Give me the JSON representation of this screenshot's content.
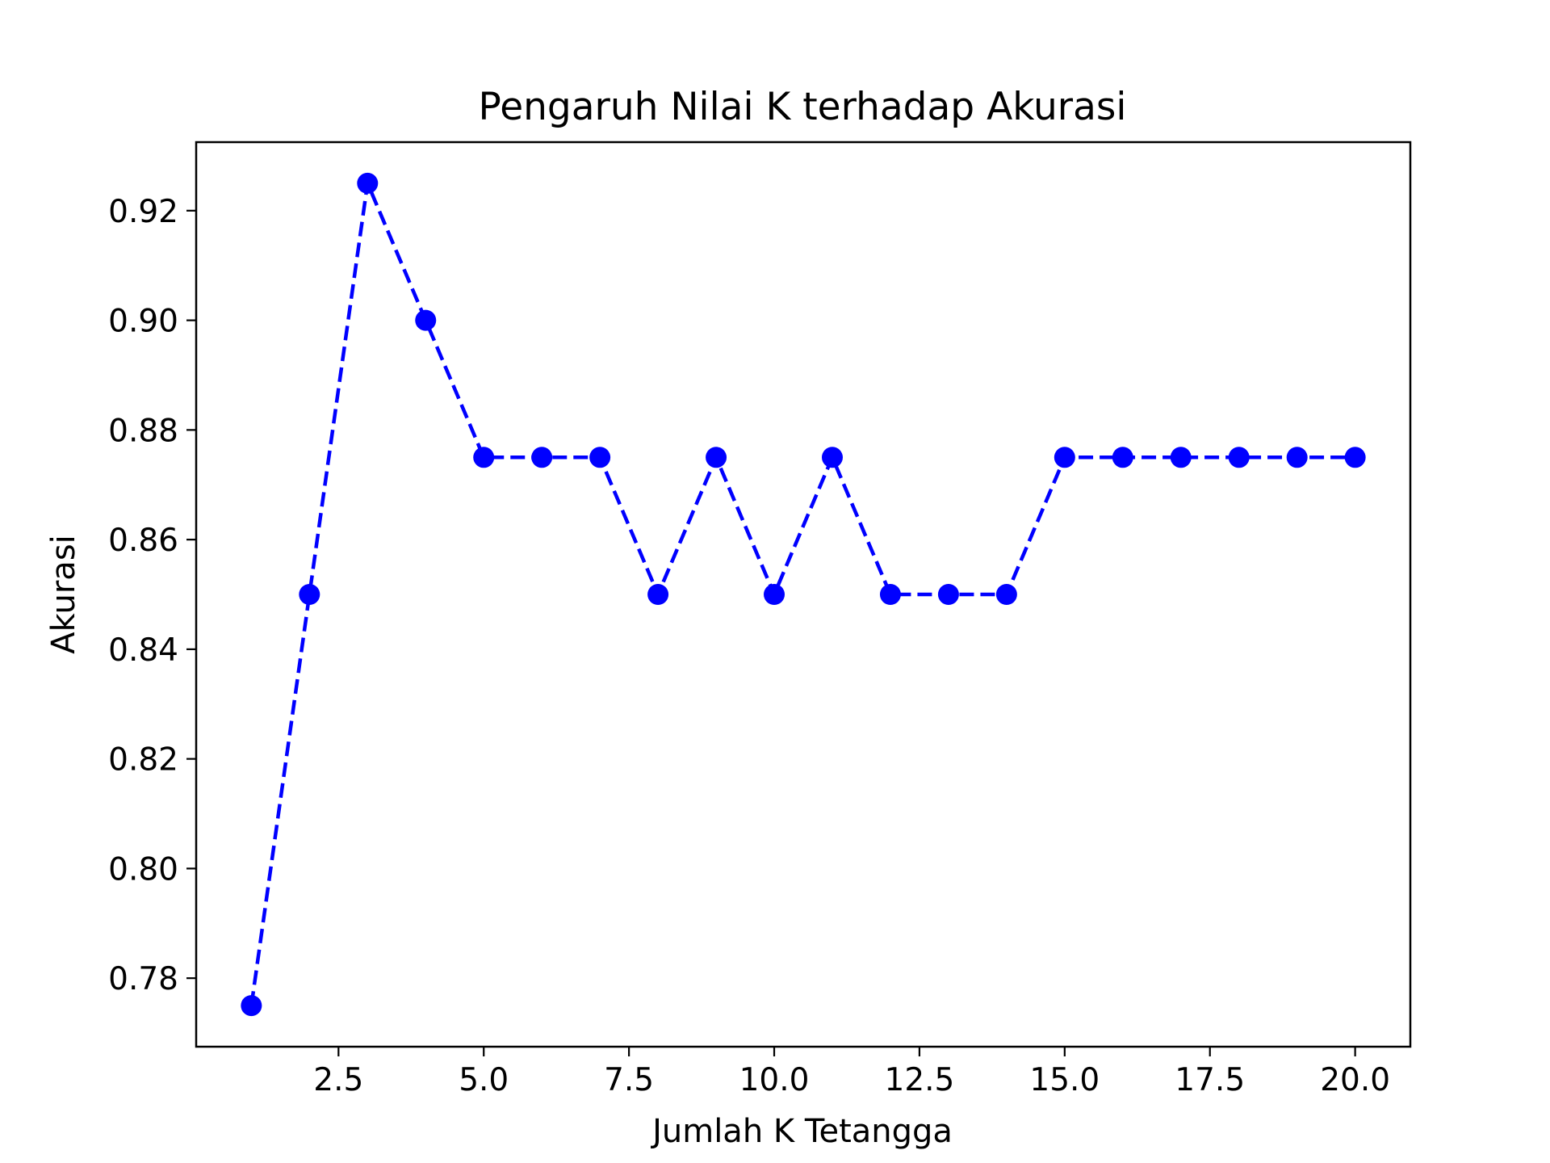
{
  "chart_data": {
    "type": "line",
    "title": "Pengaruh Nilai K terhadap Akurasi",
    "xlabel": "Jumlah K Tetangga",
    "ylabel": "Akurasi",
    "xlim": [
      0.05,
      20.95
    ],
    "ylim": [
      0.7675,
      0.9325
    ],
    "grid": false,
    "x_ticks": [
      2.5,
      5.0,
      7.5,
      10.0,
      12.5,
      15.0,
      17.5,
      20.0
    ],
    "x_tick_labels": [
      "2.5",
      "5.0",
      "7.5",
      "10.0",
      "12.5",
      "15.0",
      "17.5",
      "20.0"
    ],
    "y_ticks": [
      0.78,
      0.8,
      0.82,
      0.84,
      0.86,
      0.88,
      0.9,
      0.92
    ],
    "y_tick_labels": [
      "0.78",
      "0.80",
      "0.82",
      "0.84",
      "0.86",
      "0.88",
      "0.90",
      "0.92"
    ],
    "series": [
      {
        "color": "#0000ff",
        "line_style": "dashed",
        "marker": "circle",
        "x": [
          1,
          2,
          3,
          4,
          5,
          6,
          7,
          8,
          9,
          10,
          11,
          12,
          13,
          14,
          15,
          16,
          17,
          18,
          19,
          20
        ],
        "values": [
          0.775,
          0.85,
          0.925,
          0.9,
          0.875,
          0.875,
          0.875,
          0.85,
          0.875,
          0.85,
          0.875,
          0.85,
          0.85,
          0.85,
          0.875,
          0.875,
          0.875,
          0.875,
          0.875,
          0.875
        ]
      }
    ]
  }
}
